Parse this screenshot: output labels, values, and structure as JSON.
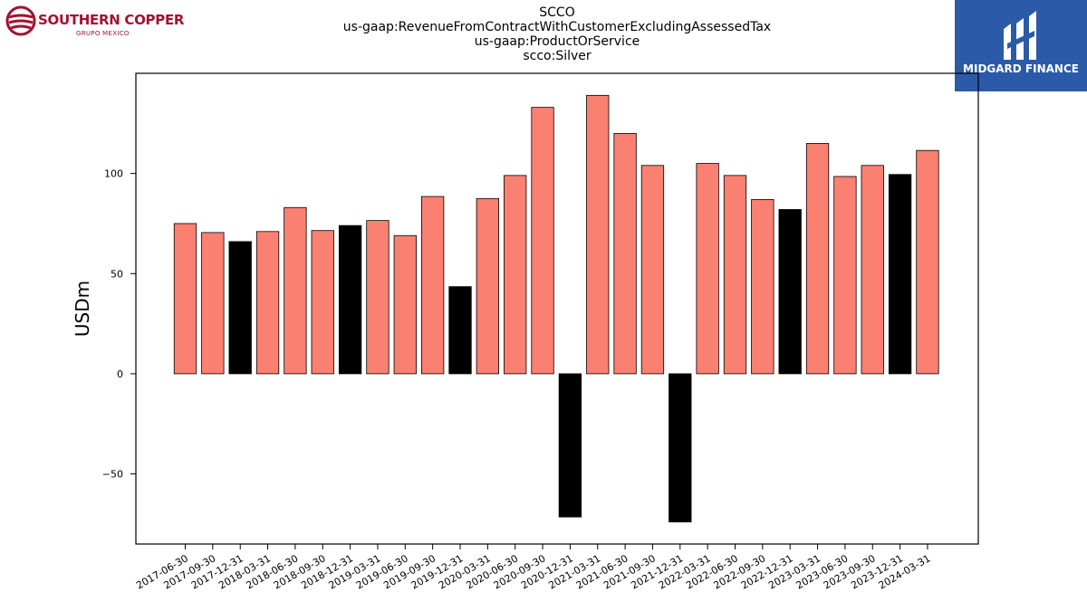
{
  "title_lines": [
    "SCCO",
    "us-gaap:RevenueFromContractWithCustomerExcludingAssessedTax",
    "us-gaap:ProductOrService",
    "scco:Silver"
  ],
  "logos": {
    "left": {
      "name": "SOUTHERN COPPER",
      "sub": "GRUPO MEXICO",
      "icon": "southern-copper-logo-icon",
      "color": "#a3122f"
    },
    "right": {
      "name": "MIDGARD FINANCE",
      "icon": "midgard-finance-logo-icon",
      "background": "#2b5aa8"
    }
  },
  "chart_data": {
    "type": "bar",
    "ylabel": "USDm",
    "xlabel": "",
    "ylim": [
      -85,
      150
    ],
    "yticks": [
      -50,
      0,
      50,
      100
    ],
    "ytick_labels": [
      "−50",
      "0",
      "50",
      "100"
    ],
    "colors": {
      "default": "#fa8072",
      "highlight": "#000000",
      "edge": "#000000"
    },
    "categories": [
      "2017-06-30",
      "2017-09-30",
      "2017-12-31",
      "2018-03-31",
      "2018-06-30",
      "2018-09-30",
      "2018-12-31",
      "2019-03-31",
      "2019-06-30",
      "2019-09-30",
      "2019-12-31",
      "2020-03-31",
      "2020-06-30",
      "2020-09-30",
      "2020-12-31",
      "2021-03-31",
      "2021-06-30",
      "2021-09-30",
      "2021-12-31",
      "2022-03-31",
      "2022-06-30",
      "2022-09-30",
      "2022-12-31",
      "2023-03-31",
      "2023-06-30",
      "2023-09-30",
      "2023-12-31",
      "2024-03-31"
    ],
    "values": [
      75,
      70.5,
      66,
      71,
      83,
      71.5,
      74,
      76.5,
      69,
      88.5,
      43.5,
      87.5,
      99,
      133,
      -71.5,
      139,
      120,
      104,
      -74,
      105,
      99,
      87,
      82,
      115,
      98.5,
      104,
      99.5,
      111.5
    ],
    "highlighted": [
      false,
      false,
      true,
      false,
      false,
      false,
      true,
      false,
      false,
      false,
      true,
      false,
      false,
      false,
      true,
      false,
      false,
      false,
      true,
      false,
      false,
      false,
      true,
      false,
      false,
      false,
      true,
      false
    ]
  }
}
